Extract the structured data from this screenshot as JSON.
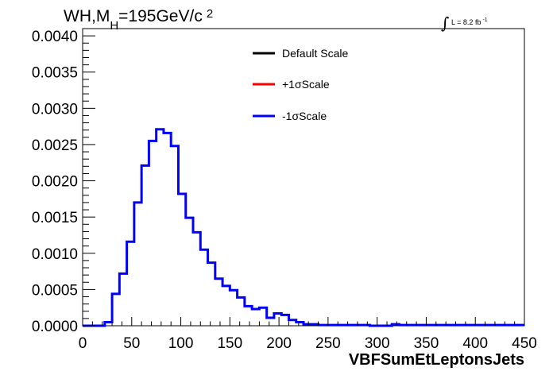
{
  "chart_data": {
    "type": "line",
    "title": {
      "prefix": "WH,M",
      "subscript": "H",
      "value": "=195GeV/c",
      "superscript": "2"
    },
    "luminosity": {
      "text": "L = 8.2 fb",
      "superscript": "-1"
    },
    "xlabel": "VBFSumEtLeptonsJets",
    "ylabel": "",
    "xlim": [
      0,
      450
    ],
    "ylim": [
      0,
      0.0041
    ],
    "x_ticks": [
      0,
      50,
      100,
      150,
      200,
      250,
      300,
      350,
      400,
      450
    ],
    "x_tick_labels": [
      "0",
      "50",
      "100",
      "150",
      "200",
      "250",
      "300",
      "350",
      "400",
      "450"
    ],
    "y_ticks": [
      0,
      0.0005,
      0.001,
      0.0015,
      0.002,
      0.0025,
      0.003,
      0.0035,
      0.004
    ],
    "y_tick_labels": [
      "0.0000",
      "0.0005",
      "0.0010",
      "0.0015",
      "0.0020",
      "0.0025",
      "0.0030",
      "0.0035",
      "0.0040"
    ],
    "bin_width": 7.5,
    "x_edges_start": 0,
    "legend_position": "top-center",
    "series": [
      {
        "name": "Default Scale",
        "color": "#000000",
        "draw": false
      },
      {
        "name": "+1σScale",
        "color": "#ff0000",
        "draw": false
      },
      {
        "name": "-1σScale",
        "color": "#0000ff",
        "draw": true
      }
    ],
    "values": [
      0,
      0,
      0,
      5e-05,
      0.00044,
      0.00072,
      0.00116,
      0.0017,
      0.00221,
      0.00255,
      0.00271,
      0.00266,
      0.00248,
      0.00182,
      0.00149,
      0.00129,
      0.00105,
      0.00087,
      0.00065,
      0.00055,
      0.00049,
      0.00039,
      0.00027,
      0.00023,
      0.00025,
      0.00011,
      0.00017,
      0.00015,
      8e-05,
      5e-05,
      2e-05,
      2e-05,
      1e-05,
      1e-05,
      1e-05,
      1e-05,
      1e-05,
      1e-05,
      1e-05,
      0,
      0,
      0,
      2e-05,
      1e-05,
      1e-05,
      1e-05,
      1e-05,
      1e-05,
      1e-05,
      1e-05,
      1e-05,
      1e-05,
      1e-05,
      1e-05,
      1e-05,
      1e-05,
      1e-05,
      1e-05,
      1e-05,
      1e-05
    ]
  }
}
